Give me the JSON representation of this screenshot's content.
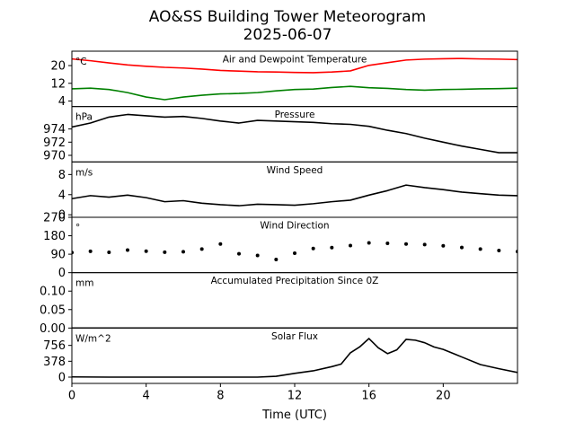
{
  "figure": {
    "title": "AO&SS Building Tower Meteorogram",
    "subtitle": "2025-06-07",
    "xlabel": "Time (UTC)"
  },
  "chart_data": [
    {
      "type": "line",
      "title": "Air and Dewpoint Temperature",
      "unit_label": "°C",
      "ylim": [
        1.5,
        26.5
      ],
      "yticks": [
        4,
        12,
        20
      ],
      "xlim": [
        0,
        24
      ],
      "series": [
        {
          "name": "",
          "color": "#ff0000",
          "x": [
            0,
            1,
            2,
            3,
            4,
            5,
            6,
            7,
            8,
            9,
            10,
            11,
            12,
            13,
            14,
            15,
            16,
            17,
            18,
            19,
            20,
            21,
            22,
            23,
            24
          ],
          "y": [
            23,
            22.2,
            21.2,
            20.3,
            19.7,
            19.2,
            18.9,
            18.4,
            17.8,
            17.5,
            17.2,
            17.1,
            16.9,
            16.8,
            17.1,
            17.6,
            20.1,
            21.3,
            22.5,
            22.9,
            23.1,
            23.2,
            23.0,
            22.9,
            22.7
          ]
        },
        {
          "name": "",
          "color": "#008000",
          "x": [
            0,
            1,
            2,
            3,
            4,
            5,
            6,
            7,
            8,
            9,
            10,
            11,
            12,
            13,
            14,
            15,
            16,
            17,
            18,
            19,
            20,
            21,
            22,
            23,
            24
          ],
          "y": [
            9.5,
            9.8,
            9.2,
            7.8,
            5.8,
            4.6,
            5.8,
            6.6,
            7.2,
            7.4,
            7.8,
            8.6,
            9.2,
            9.4,
            10.1,
            10.6,
            10.0,
            9.7,
            9.2,
            8.9,
            9.2,
            9.3,
            9.5,
            9.6,
            9.8
          ]
        }
      ]
    },
    {
      "type": "line",
      "title": "Pressure",
      "unit_label": "hPa",
      "ylim": [
        969.0,
        977.4
      ],
      "yticks": [
        970,
        972,
        974
      ],
      "xlim": [
        0,
        24
      ],
      "series": [
        {
          "name": "",
          "color": "#000000",
          "x": [
            0,
            1,
            2,
            3,
            4,
            5,
            6,
            7,
            8,
            9,
            10,
            11,
            12,
            13,
            14,
            15,
            16,
            17,
            18,
            19,
            20,
            21,
            22,
            23,
            24
          ],
          "y": [
            974.3,
            974.9,
            975.8,
            976.2,
            976.0,
            975.8,
            975.9,
            975.6,
            975.2,
            974.9,
            975.3,
            975.2,
            975.1,
            975.0,
            974.8,
            974.7,
            974.4,
            973.8,
            973.3,
            972.6,
            972.0,
            971.4,
            970.9,
            970.4,
            970.4
          ]
        }
      ]
    },
    {
      "type": "line",
      "title": "Wind Speed",
      "unit_label": "m/s",
      "ylim": [
        -0.5,
        10.5
      ],
      "yticks": [
        0,
        4,
        8
      ],
      "xlim": [
        0,
        24
      ],
      "series": [
        {
          "name": "",
          "color": "#000000",
          "x": [
            0,
            1,
            2,
            3,
            4,
            5,
            6,
            7,
            8,
            9,
            10,
            11,
            12,
            13,
            14,
            15,
            16,
            17,
            18,
            19,
            20,
            21,
            22,
            23,
            24
          ],
          "y": [
            3.2,
            3.8,
            3.5,
            3.9,
            3.4,
            2.6,
            2.8,
            2.3,
            2.0,
            1.8,
            2.1,
            2.0,
            1.9,
            2.2,
            2.6,
            2.9,
            3.9,
            4.8,
            5.9,
            5.4,
            5.0,
            4.5,
            4.2,
            3.9,
            3.8
          ]
        }
      ]
    },
    {
      "type": "scatter",
      "title": "Wind Direction",
      "unit_label": "°",
      "ylim": [
        0,
        270
      ],
      "yticks": [
        0,
        90,
        180,
        270
      ],
      "xlim": [
        0,
        24
      ],
      "series": [
        {
          "name": "",
          "color": "#000000",
          "x": [
            0,
            1,
            2,
            3,
            4,
            5,
            6,
            7,
            8,
            9,
            10,
            11,
            12,
            13,
            14,
            15,
            16,
            17,
            18,
            19,
            20,
            21,
            22,
            23,
            24
          ],
          "y": [
            98,
            104,
            99,
            110,
            105,
            100,
            102,
            115,
            140,
            92,
            84,
            64,
            95,
            118,
            122,
            132,
            145,
            143,
            140,
            137,
            131,
            123,
            115,
            108,
            103
          ]
        }
      ]
    },
    {
      "type": "line",
      "title": "Accumulated Precipitation Since 0Z",
      "unit_label": "mm",
      "ylim": [
        0,
        0.15
      ],
      "yticks": [
        0.0,
        0.05,
        0.1
      ],
      "ytick_labels": [
        "0.00",
        "0.05",
        "0.10"
      ],
      "xlim": [
        0,
        24
      ],
      "series": [
        {
          "name": "",
          "color": "#000000",
          "x": [
            0,
            24
          ],
          "y": [
            0,
            0
          ]
        }
      ]
    },
    {
      "type": "line",
      "title": "Solar Flux",
      "unit_label": "W/m^2",
      "ylim": [
        -150,
        1170
      ],
      "yticks": [
        0,
        378,
        756
      ],
      "xlim": [
        0,
        24
      ],
      "xticks": [
        0,
        4,
        8,
        12,
        16,
        20
      ],
      "series": [
        {
          "name": "",
          "color": "#000000",
          "x": [
            0,
            2,
            4,
            6,
            8,
            10,
            11,
            12,
            13,
            14,
            14.5,
            15,
            15.5,
            16,
            16.5,
            17,
            17.5,
            18,
            18.5,
            19,
            19.5,
            20,
            21,
            22,
            23,
            24
          ],
          "y": [
            5,
            0,
            0,
            0,
            0,
            0,
            20,
            90,
            150,
            250,
            310,
            580,
            720,
            920,
            700,
            560,
            650,
            900,
            880,
            820,
            720,
            660,
            480,
            300,
            200,
            110
          ]
        }
      ]
    }
  ]
}
